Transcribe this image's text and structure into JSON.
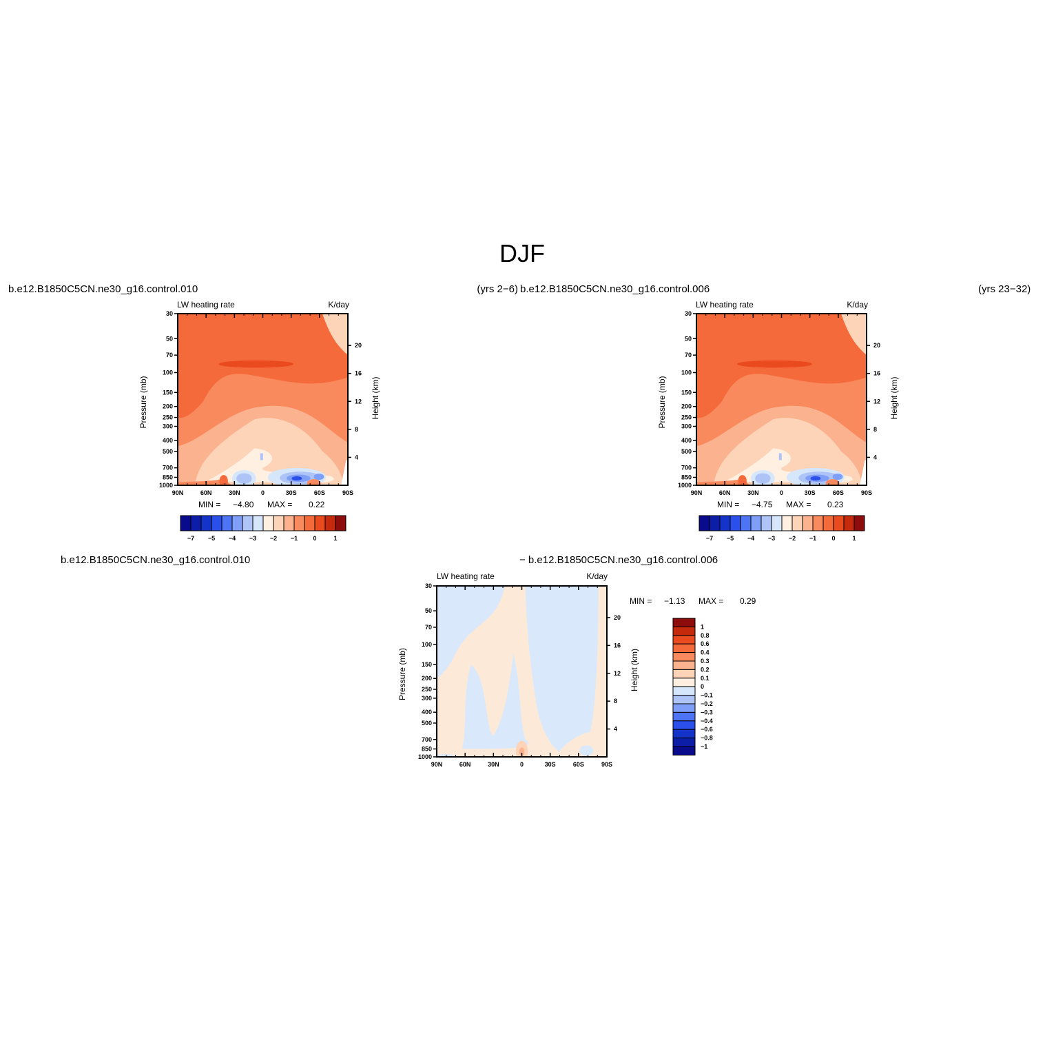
{
  "page": {
    "title": "DJF"
  },
  "colors": {
    "blues": [
      "#0a0a8c",
      "#0c1ea8",
      "#1433c8",
      "#2b4fea",
      "#4d74f5",
      "#7f9ef7",
      "#aec4f7",
      "#d6e6fb"
    ],
    "reds": [
      "#fff0e2",
      "#fdd4b8",
      "#fbb28f",
      "#f98a5e",
      "#f56a3a",
      "#e94a1e",
      "#c62a0c",
      "#8e0c0c"
    ],
    "diff_blue": "#d9e9fb",
    "diff_orange": "#fde9d8"
  },
  "panels": [
    {
      "case_title": "b.e12.B1850C5CN.ne30_g16.control.010",
      "years": "(yrs 2−6)",
      "left_string": "LW heating rate",
      "right_string": "K/day",
      "min_label": "MIN =",
      "min_value": "−4.80",
      "max_label": "MAX =",
      "max_value": "0.22"
    },
    {
      "case_title": "b.e12.B1850C5CN.ne30_g16.control.006",
      "years": "(yrs 23−32)",
      "left_string": "LW heating rate",
      "right_string": "K/day",
      "min_label": "MIN =",
      "min_value": "−4.75",
      "max_label": "MAX =",
      "max_value": "0.23"
    }
  ],
  "difference_panel": {
    "title_left": "b.e12.B1850C5CN.ne30_g16.control.010",
    "title_right": "− b.e12.B1850C5CN.ne30_g16.control.006",
    "left_string": "LW heating rate",
    "right_string": "K/day",
    "min_label": "MIN =",
    "min_value": "−1.13",
    "max_label": "MAX =",
    "max_value": "0.29"
  },
  "chart_data": [
    {
      "type": "heatmap",
      "title": "b.e12.B1850C5CN.ne30_g16.control.010 (yrs 2−6)",
      "xlabel": "",
      "ylabel": "Pressure (mb)",
      "ylabel_right": "Height (km)",
      "x_ticks": [
        "90N",
        "60N",
        "30N",
        "0",
        "30S",
        "60S",
        "90S"
      ],
      "y_ticks": [
        "30",
        "50",
        "70",
        "100",
        "150",
        "200",
        "250",
        "300",
        "400",
        "500",
        "700",
        "850",
        "1000"
      ],
      "y_ticks_right": [
        "20",
        "16",
        "12",
        "8",
        "4"
      ],
      "ylim": [
        1000,
        30
      ],
      "colorbar_labels": [
        "−7",
        "−5",
        "−4",
        "−3",
        "−2",
        "−1",
        "0",
        "1"
      ],
      "min": -4.8,
      "max": 0.22
    },
    {
      "type": "heatmap",
      "title": "b.e12.B1850C5CN.ne30_g16.control.006 (yrs 23−32)",
      "ylabel": "Pressure (mb)",
      "ylabel_right": "Height (km)",
      "x_ticks": [
        "90N",
        "60N",
        "30N",
        "0",
        "30S",
        "60S",
        "90S"
      ],
      "y_ticks": [
        "30",
        "50",
        "70",
        "100",
        "150",
        "200",
        "250",
        "300",
        "400",
        "500",
        "700",
        "850",
        "1000"
      ],
      "y_ticks_right": [
        "20",
        "16",
        "12",
        "8",
        "4"
      ],
      "ylim": [
        1000,
        30
      ],
      "colorbar_labels": [
        "−7",
        "−5",
        "−4",
        "−3",
        "−2",
        "−1",
        "0",
        "1"
      ],
      "min": -4.75,
      "max": 0.23
    },
    {
      "type": "heatmap",
      "title": "b.e12.B1850C5CN.ne30_g16.control.010 − b.e12.B1850C5CN.ne30_g16.control.006",
      "ylabel": "Pressure (mb)",
      "ylabel_right": "Height (km)",
      "x_ticks": [
        "90N",
        "60N",
        "30N",
        "0",
        "30S",
        "60S",
        "90S"
      ],
      "y_ticks": [
        "30",
        "50",
        "70",
        "100",
        "150",
        "200",
        "250",
        "300",
        "400",
        "500",
        "700",
        "850",
        "1000"
      ],
      "y_ticks_right": [
        "20",
        "16",
        "12",
        "8",
        "4"
      ],
      "ylim": [
        1000,
        30
      ],
      "colorbar_labels": [
        "1",
        "0.8",
        "0.6",
        "0.4",
        "0.3",
        "0.2",
        "0.1",
        "0",
        "−0.1",
        "−0.2",
        "−0.3",
        "−0.4",
        "−0.6",
        "−0.8",
        "−1"
      ],
      "min": -1.13,
      "max": 0.29
    }
  ]
}
